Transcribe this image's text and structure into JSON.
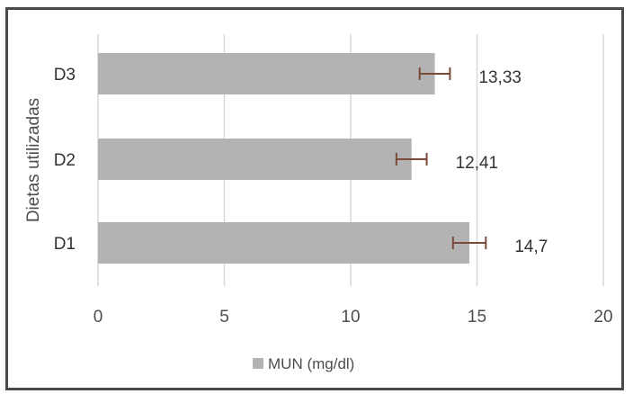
{
  "chart_data": {
    "type": "bar",
    "orientation": "horizontal",
    "categories": [
      "D1",
      "D2",
      "D3"
    ],
    "series": [
      {
        "name": "MUN (mg/dl)",
        "values": [
          14.7,
          12.41,
          13.33
        ],
        "error": [
          0.65,
          0.6,
          0.6
        ],
        "data_labels": [
          "14,7",
          "12,41",
          "13,33"
        ]
      }
    ],
    "xlim": [
      0,
      20
    ],
    "xticks": [
      0,
      5,
      10,
      15,
      20
    ],
    "ylabel": "Dietas utilizadas",
    "xlabel": "",
    "grid": "vertical",
    "legend": "bottom",
    "colors": {
      "bar": "#b3b3b3",
      "error_bar": "#7a4a3a",
      "grid": "#d9d9d9"
    }
  }
}
